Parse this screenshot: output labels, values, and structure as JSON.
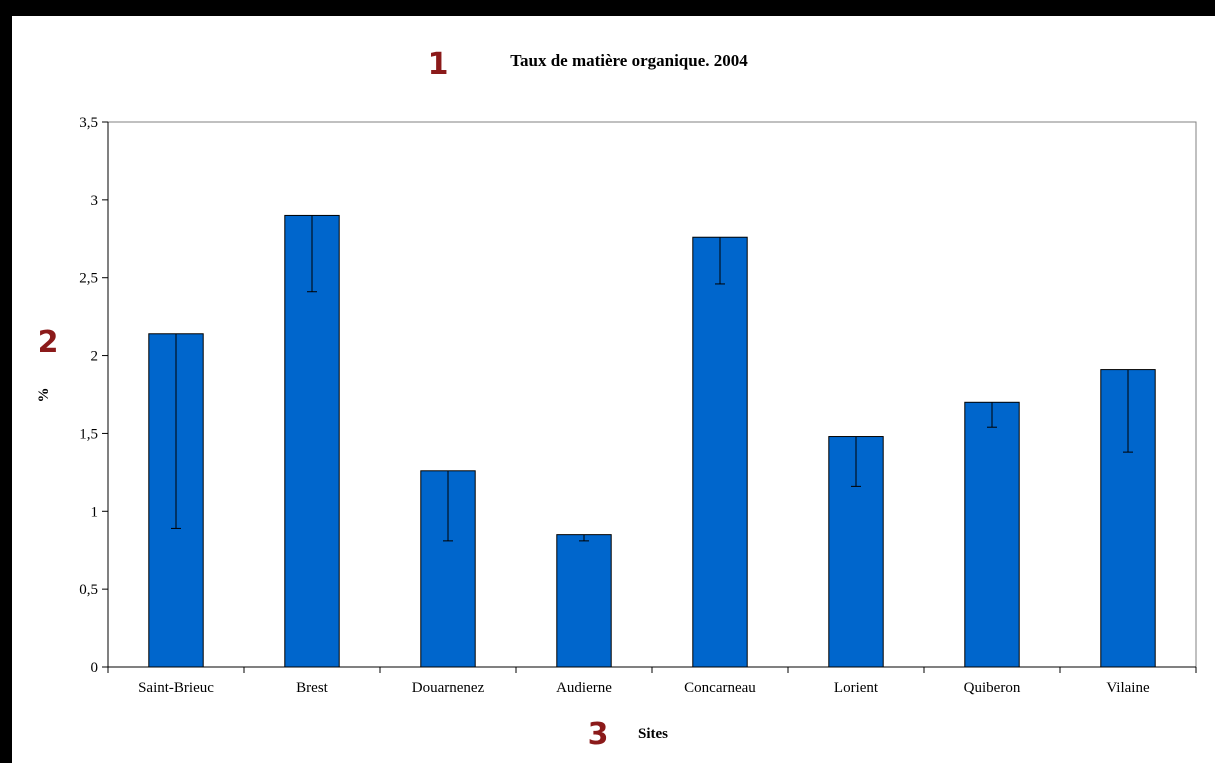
{
  "markers": {
    "title": "1",
    "y": "2",
    "x": "3"
  },
  "chart_data": {
    "type": "bar",
    "title": "Taux de matière organique. 2004",
    "xlabel": "Sites",
    "ylabel": "%",
    "ylim": [
      0,
      3.5
    ],
    "yticks": [
      "0",
      "0,5",
      "1",
      "1,5",
      "2",
      "2,5",
      "3",
      "3,5"
    ],
    "categories": [
      "Saint-Brieuc",
      "Brest",
      "Douarnenez",
      "Audierne",
      "Concarneau",
      "Lorient",
      "Quiberon",
      "Vilaine"
    ],
    "values": [
      2.14,
      2.9,
      1.26,
      0.85,
      2.76,
      1.48,
      1.7,
      1.91
    ],
    "error_low": [
      0.89,
      2.41,
      0.81,
      0.81,
      2.46,
      1.16,
      1.54,
      1.38
    ],
    "bar_color": "#0066cc",
    "grid": false,
    "legend": "none"
  }
}
